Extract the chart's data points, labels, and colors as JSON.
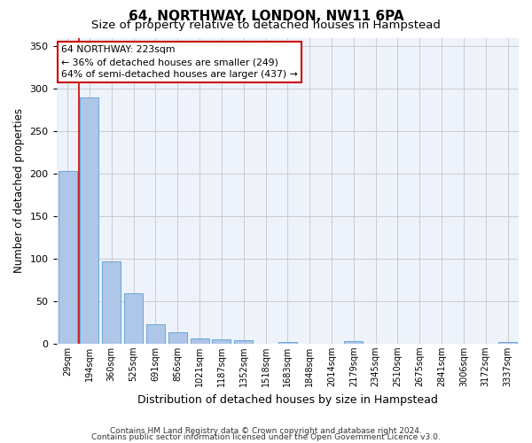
{
  "title": "64, NORTHWAY, LONDON, NW11 6PA",
  "subtitle": "Size of property relative to detached houses in Hampstead",
  "xlabel": "Distribution of detached houses by size in Hampstead",
  "ylabel": "Number of detached properties",
  "categories": [
    "29sqm",
    "194sqm",
    "360sqm",
    "525sqm",
    "691sqm",
    "856sqm",
    "1021sqm",
    "1187sqm",
    "1352sqm",
    "1518sqm",
    "1683sqm",
    "1848sqm",
    "2014sqm",
    "2179sqm",
    "2345sqm",
    "2510sqm",
    "2675sqm",
    "2841sqm",
    "3006sqm",
    "3172sqm",
    "3337sqm"
  ],
  "bar_heights": [
    203,
    290,
    97,
    59,
    23,
    13,
    6,
    5,
    4,
    0,
    2,
    0,
    0,
    3,
    0,
    0,
    0,
    0,
    0,
    0,
    2
  ],
  "bar_color": "#aec6e8",
  "bar_edge_color": "#5a9fd4",
  "redline_color": "#cc0000",
  "grid_color": "#cccccc",
  "background_color": "#edf2fb",
  "annotation_line1": "64 NORTHWAY: 223sqm",
  "annotation_line2": "← 36% of detached houses are smaller (249)",
  "annotation_line3": "64% of semi-detached houses are larger (437) →",
  "annotation_box_color": "#ffffff",
  "annotation_box_edge": "#cc0000",
  "footer_line1": "Contains HM Land Registry data © Crown copyright and database right 2024.",
  "footer_line2": "Contains public sector information licensed under the Open Government Licence v3.0.",
  "ylim": [
    0,
    360
  ],
  "title_fontsize": 11,
  "subtitle_fontsize": 9.5,
  "ylabel_fontsize": 8.5,
  "xlabel_fontsize": 9,
  "tick_fontsize": 7,
  "annot_fontsize": 7.8,
  "footer_fontsize": 6.5
}
